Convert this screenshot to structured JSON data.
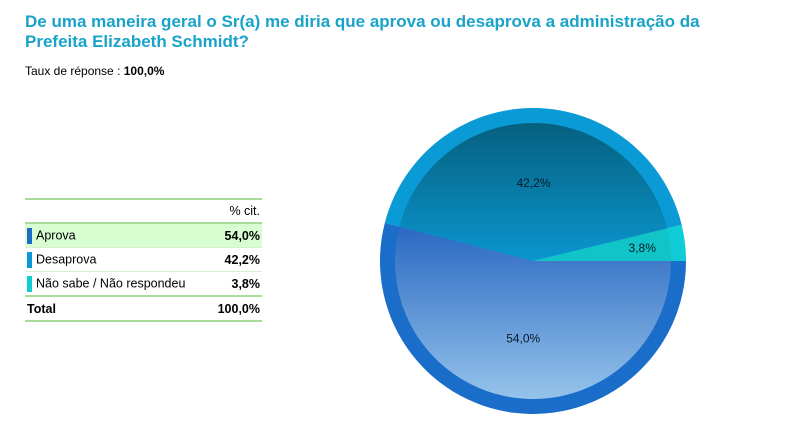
{
  "title": "De uma maneira geral o Sr(a) me diria que aprova ou desaprova a administração da Prefeita Elizabeth Schmidt?",
  "response_rate_label": "Taux de réponse :",
  "response_rate_value": "100,0%",
  "table": {
    "col_header": "% cit.",
    "rows": [
      {
        "label": "Aprova",
        "value": "54,0%",
        "color": "#1a6cc6"
      },
      {
        "label": "Desaprova",
        "value": "42,2%",
        "color": "#0a98d6"
      },
      {
        "label": "Não sabe / Não respondeu",
        "value": "3,8%",
        "color": "#12ccd4"
      }
    ],
    "total_label": "Total",
    "total_value": "100,0%"
  },
  "chart_data": {
    "type": "pie",
    "title": "De uma maneira geral o Sr(a) me diria que aprova ou desaprova a administração da Prefeita Elizabeth Schmidt?",
    "categories": [
      "Não sabe / Não respondeu",
      "Desaprova",
      "Aprova"
    ],
    "values": [
      3.8,
      42.2,
      54.0
    ],
    "labels": [
      "3,8%",
      "42,2%",
      "54,0%"
    ],
    "colors": {
      "ring": [
        "#10ccd6",
        "#0a9ad6",
        "#1a6dc8"
      ],
      "inner_top": [
        "#10c4c8",
        "#06607f",
        "#2a68c2"
      ],
      "inner_bottom": [
        "#10c4c8",
        "#0a96cf",
        "#95c3ea"
      ]
    }
  }
}
